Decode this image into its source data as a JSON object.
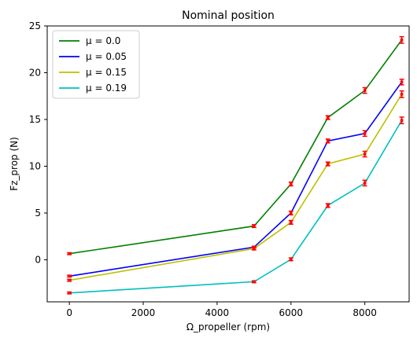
{
  "chart_data": {
    "type": "line",
    "title": "Nominal position",
    "xlabel": "Ω_propeller (rpm)",
    "ylabel": "Fz_prop (N)",
    "xlim": [
      -600,
      9200
    ],
    "ylim": [
      -4.5,
      25
    ],
    "xticks": [
      0,
      2000,
      4000,
      6000,
      8000
    ],
    "xtick_labels": [
      "0",
      "2000",
      "4000",
      "6000",
      "8000"
    ],
    "yticks": [
      0,
      5,
      10,
      15,
      20,
      25
    ],
    "ytick_labels": [
      "0",
      "5",
      "10",
      "15",
      "20",
      "25"
    ],
    "grid": false,
    "legend_position": "upper-left",
    "x": [
      0,
      5000,
      6000,
      7000,
      8000,
      9000
    ],
    "series": [
      {
        "name": "μ = 0.0",
        "color": "#008000",
        "values": [
          0.65,
          3.6,
          8.1,
          15.2,
          18.1,
          23.5
        ],
        "err": [
          0.1,
          0.15,
          0.2,
          0.2,
          0.3,
          0.35
        ]
      },
      {
        "name": "μ = 0.05",
        "color": "#0000ff",
        "values": [
          -1.75,
          1.35,
          5.0,
          12.7,
          13.5,
          19.0
        ],
        "err": [
          0.1,
          0.1,
          0.2,
          0.2,
          0.3,
          0.3
        ]
      },
      {
        "name": "μ = 0.15",
        "color": "#bfbf00",
        "values": [
          -2.2,
          1.2,
          4.0,
          10.25,
          11.3,
          17.7
        ],
        "err": [
          0.1,
          0.15,
          0.2,
          0.2,
          0.3,
          0.35
        ]
      },
      {
        "name": "μ = 0.19",
        "color": "#00bfbf",
        "values": [
          -3.55,
          -2.35,
          0.05,
          5.8,
          8.2,
          14.9
        ],
        "err": [
          0.1,
          0.1,
          0.15,
          0.2,
          0.3,
          0.35
        ]
      }
    ],
    "errorbar_color": "#ff0000"
  }
}
